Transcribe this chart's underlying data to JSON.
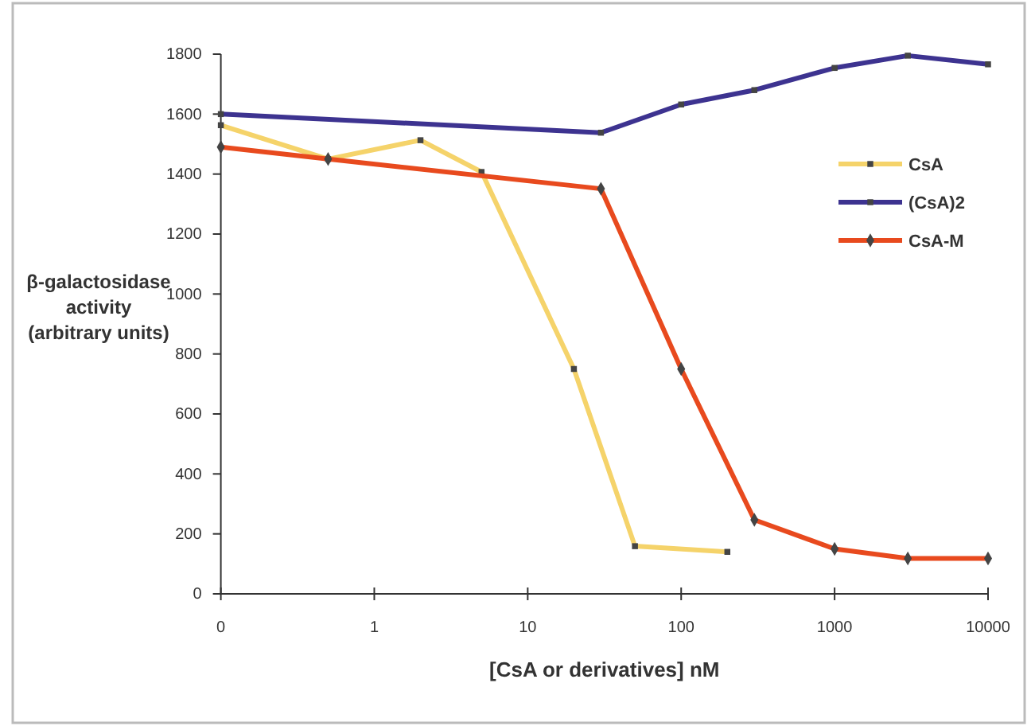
{
  "chart_data": {
    "type": "line",
    "xlabel": "[CsA or derivatives] nM",
    "ylabel": "β-galactosidase\nactivity\n(arbitrary units)",
    "log": "x",
    "xlim": [
      0.1,
      10000
    ],
    "xticks": [
      {
        "value": 0.1,
        "label": "0"
      },
      1,
      10,
      100,
      1000,
      10000
    ],
    "ylim": [
      0,
      1800
    ],
    "yticks": [
      0,
      200,
      400,
      600,
      800,
      1000,
      1200,
      1400,
      1600,
      1800
    ],
    "grid": false,
    "legend": "top right",
    "line_style": "solid",
    "series": [
      {
        "name": "CsA",
        "color": "#f5d36a",
        "marker": "square",
        "x": [
          0.1,
          0.5,
          2,
          5,
          20,
          50,
          200
        ],
        "values": [
          1563,
          1450,
          1513,
          1407,
          750,
          159,
          140
        ]
      },
      {
        "name": "(CsA)2",
        "color": "#3d3390",
        "marker": "square",
        "x": [
          0.1,
          30,
          100,
          300,
          1000,
          3000,
          10000
        ],
        "values": [
          1600,
          1538,
          1632,
          1680,
          1754,
          1795,
          1766
        ]
      },
      {
        "name": "CsA-M",
        "color": "#e84a1e",
        "marker": "diamond",
        "x": [
          0.1,
          0.5,
          30,
          100,
          300,
          1000,
          3000,
          10000
        ],
        "values": [
          1490,
          1450,
          1351,
          750,
          247,
          150,
          118,
          118
        ]
      }
    ]
  }
}
